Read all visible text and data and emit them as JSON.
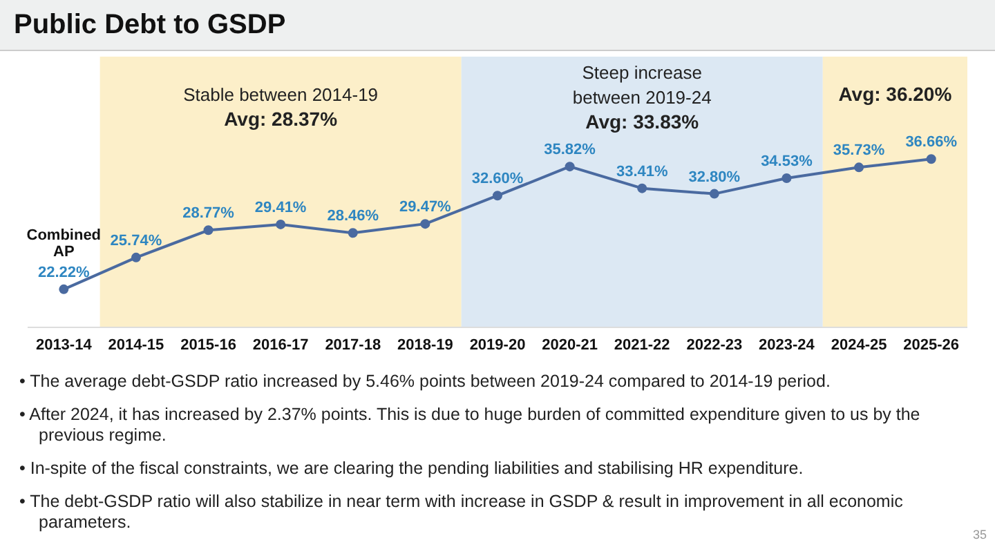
{
  "chart_data": {
    "type": "line",
    "title": "Public Debt to GSDP",
    "categories": [
      "2013-14",
      "2014-15",
      "2015-16",
      "2016-17",
      "2017-18",
      "2018-19",
      "2019-20",
      "2020-21",
      "2021-22",
      "2022-23",
      "2023-24",
      "2024-25",
      "2025-26"
    ],
    "series": [
      {
        "color": "#4a6aa0",
        "values": [
          22.22,
          25.74,
          28.77,
          29.41,
          28.46,
          29.47,
          32.6,
          35.82,
          33.41,
          32.8,
          34.53,
          35.73,
          36.66
        ],
        "value_labels": [
          "22.22%",
          "25.74%",
          "28.77%",
          "29.41%",
          "28.46%",
          "29.47%",
          "32.60%",
          "35.82%",
          "33.41%",
          "32.80%",
          "34.53%",
          "35.73%",
          "36.66%"
        ]
      }
    ],
    "marker": "circle",
    "bands": [
      {
        "axis": "x",
        "from": "2014-15",
        "to": "2018-19",
        "label": "Stable between 2014-19\nAvg: 28.37%",
        "color": "#fcefc9"
      },
      {
        "axis": "x",
        "from": "2019-20",
        "to": "2023-24",
        "label": "Steep increase\nbetween 2019-24\nAvg: 33.83%",
        "color": "#dce8f3"
      },
      {
        "axis": "x",
        "from": "2024-25",
        "to": "2025-26",
        "label": "Avg: 36.20%",
        "color": "#fcefc9"
      }
    ],
    "annotations": [
      {
        "text": "Combined\nAP",
        "x": "2013-14",
        "y": 22.22
      },
      "• The average debt-GSDP ratio increased by 5.46% points between 2019-24 compared to 2014-19 period.",
      "• After 2024, it has increased by 2.37% points. This is due to huge burden of committed expenditure given to us by the previous regime.",
      "• In-spite of the fiscal constraints, we are clearing the pending liabilities and stabilising HR expenditure.",
      "• The debt-GSDP ratio will also stabilize in near term with increase in GSDP & result in improvement in all economic parameters.",
      "35"
    ]
  }
}
